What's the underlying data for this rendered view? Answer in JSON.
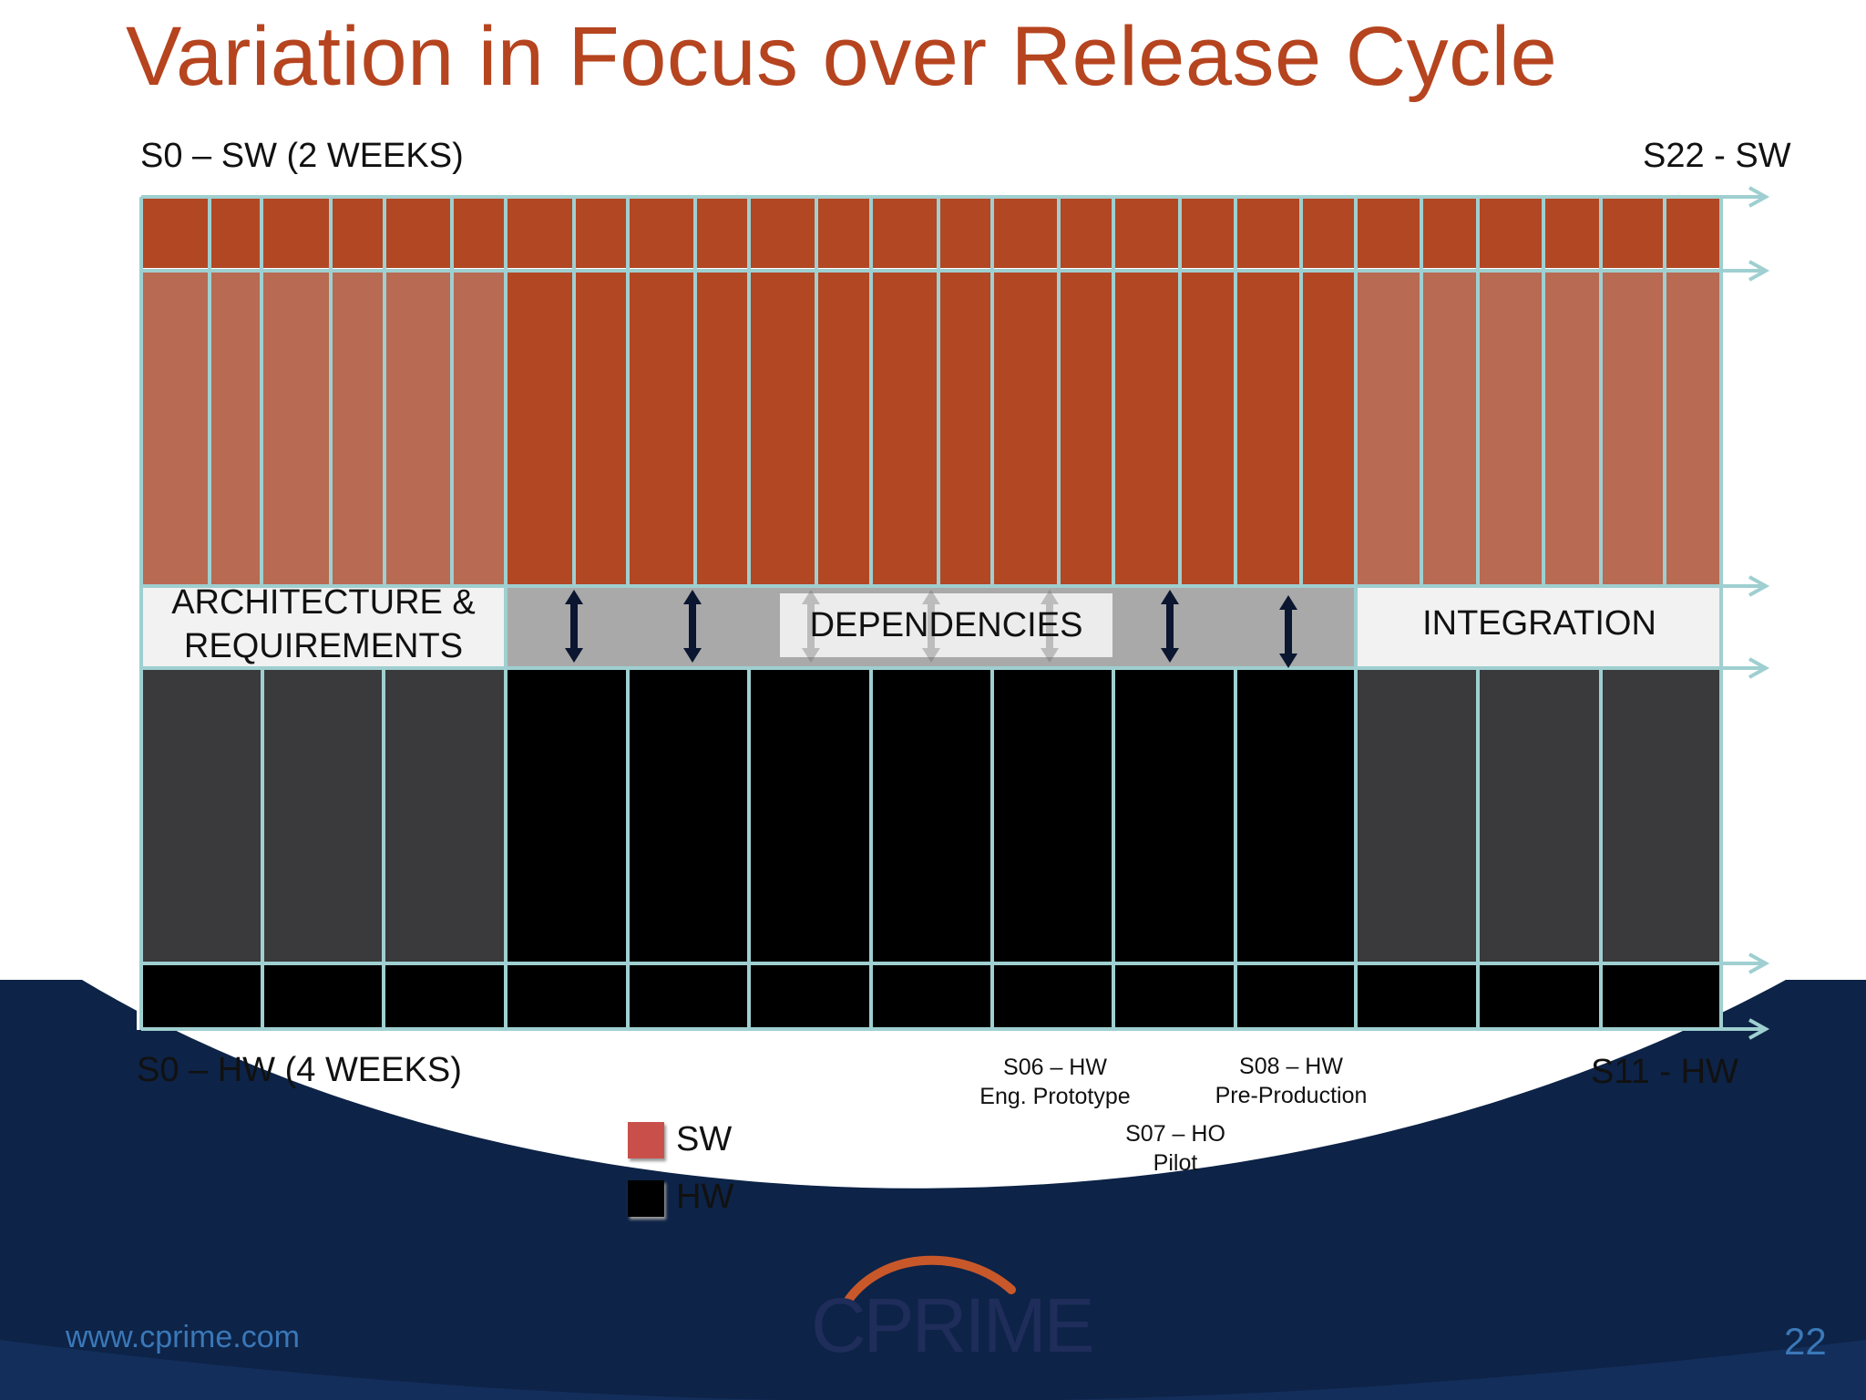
{
  "title": "Variation in Focus over Release Cycle",
  "labels": {
    "sw_start": "S0 – SW (2 WEEKS)",
    "sw_end": "S22 - SW",
    "hw_start": "S0 – HW (4 WEEKS)",
    "hw_end": "S11 - HW"
  },
  "phases": {
    "architecture_line1": "ARCHITECTURE &",
    "architecture_line2": "REQUIREMENTS",
    "dependencies": "DEPENDENCIES",
    "integration": "INTEGRATION"
  },
  "milestones": {
    "s06_line1": "S06 – HW",
    "s06_line2": "Eng. Prototype",
    "s07_line1": "S07 – HO",
    "s07_line2": "Pilot",
    "s08_line1": "S08 – HW",
    "s08_line2": "Pre-Production"
  },
  "legend": {
    "sw": "SW",
    "hw": "HW",
    "sw_color": "#c9504a",
    "hw_color": "#000000"
  },
  "footer": {
    "url": "www.cprime.com",
    "page": "22",
    "logo": "CPRIME"
  },
  "colors": {
    "title": "#b5441f",
    "sw_strong": "#b24724",
    "sw_light": "#b86a52",
    "hw_strong": "#000000",
    "hw_light": "#3a3a3c",
    "grid": "#9fcfd0",
    "navy": "#0d2347"
  }
}
